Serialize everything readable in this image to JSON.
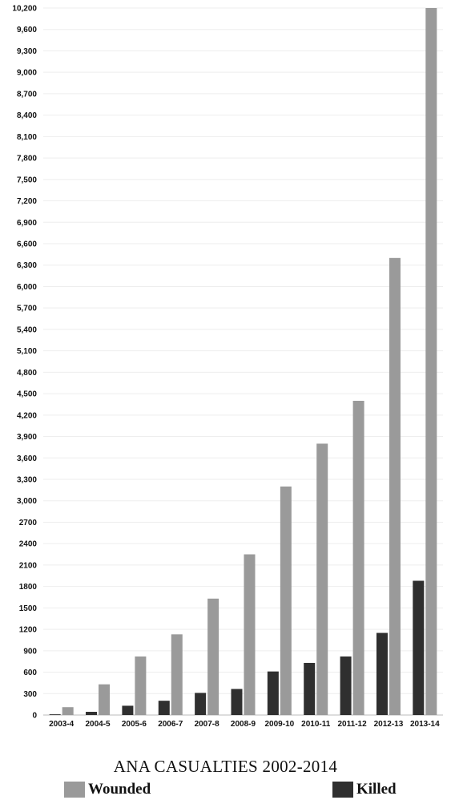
{
  "chart_data": {
    "type": "bar",
    "title": "ANA CASUALTIES 2002-2014",
    "categories": [
      "2003-4",
      "2004-5",
      "2005-6",
      "2006-7",
      "2007-8",
      "2008-9",
      "2009-10",
      "2010-11",
      "2011-12",
      "2012-13",
      "2013-14"
    ],
    "series": [
      {
        "name": "Killed",
        "values": [
          10,
          45,
          130,
          200,
          310,
          365,
          610,
          730,
          820,
          1150,
          1880
        ]
      },
      {
        "name": "Wounded",
        "values": [
          110,
          430,
          820,
          1130,
          1630,
          2250,
          3200,
          3800,
          4400,
          6400,
          10200
        ]
      }
    ],
    "ticks": [
      "0",
      "300",
      "600",
      "900",
      "1200",
      "1500",
      "1800",
      "2100",
      "2400",
      "2700",
      "3,000",
      "3,300",
      "3,600",
      "3,900",
      "4,200",
      "4,500",
      "4,800",
      "5,100",
      "5,400",
      "5,700",
      "6,000",
      "6,300",
      "6,600",
      "6,900",
      "7,200",
      "7,500",
      "7,800",
      "8,100",
      "8,400",
      "8,700",
      "9,000",
      "9,300",
      "9,600",
      "10,200"
    ],
    "tick_values": [
      0,
      300,
      600,
      900,
      1200,
      1500,
      1800,
      2100,
      2400,
      2700,
      3000,
      3300,
      3600,
      3900,
      4200,
      4500,
      4800,
      5100,
      5400,
      5700,
      6000,
      6300,
      6600,
      6900,
      7200,
      7500,
      7800,
      8100,
      8400,
      8700,
      9000,
      9300,
      9600,
      10200
    ],
    "ylim": [
      0,
      10200
    ],
    "legend_position": "bottom",
    "colors": {
      "wounded": "#9a9a9a",
      "killed": "#2f2f2f"
    }
  },
  "legend": {
    "wounded_label": "Wounded",
    "killed_label": "Killed"
  }
}
